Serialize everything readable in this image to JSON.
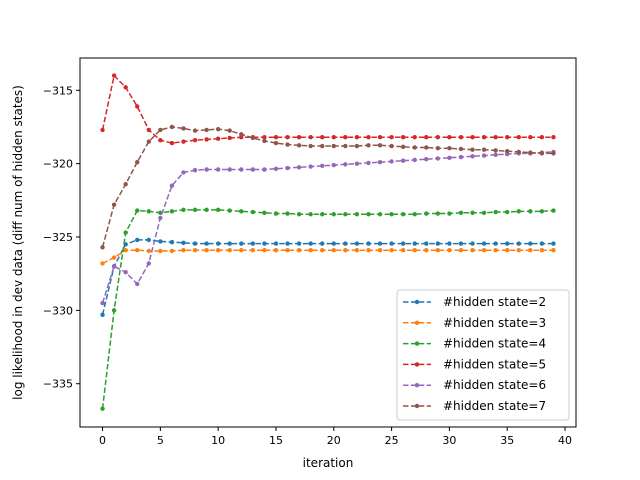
{
  "chart_data": {
    "type": "line",
    "title": "",
    "xlabel": "iteration",
    "ylabel": "log likelihood in dev data (diff num of hidden states)",
    "xlim": [
      -1.95,
      40.95
    ],
    "ylim": [
      -337.95,
      -312.8
    ],
    "xticks": [
      0,
      5,
      10,
      15,
      20,
      25,
      30,
      35,
      40
    ],
    "xtick_labels": [
      "0",
      "5",
      "10",
      "15",
      "20",
      "25",
      "30",
      "35",
      "40"
    ],
    "yticks": [
      -335,
      -330,
      -325,
      -320,
      -315
    ],
    "ytick_labels": [
      "−335",
      "−330",
      "−325",
      "−320",
      "−315"
    ],
    "grid": false,
    "legend_position": "lower right",
    "x": [
      0,
      1,
      2,
      3,
      4,
      5,
      6,
      7,
      8,
      9,
      10,
      11,
      12,
      13,
      14,
      15,
      16,
      17,
      18,
      19,
      20,
      21,
      22,
      23,
      24,
      25,
      26,
      27,
      28,
      29,
      30,
      31,
      32,
      33,
      34,
      35,
      36,
      37,
      38,
      39
    ],
    "series": [
      {
        "name": "#hidden state=2",
        "color": "#1f77b4",
        "values": [
          -330.3,
          -327.0,
          -325.5,
          -325.2,
          -325.2,
          -325.3,
          -325.35,
          -325.4,
          -325.45,
          -325.45,
          -325.45,
          -325.45,
          -325.45,
          -325.45,
          -325.45,
          -325.45,
          -325.45,
          -325.45,
          -325.45,
          -325.45,
          -325.45,
          -325.45,
          -325.45,
          -325.45,
          -325.45,
          -325.45,
          -325.45,
          -325.45,
          -325.45,
          -325.45,
          -325.45,
          -325.45,
          -325.45,
          -325.45,
          -325.45,
          -325.45,
          -325.45,
          -325.45,
          -325.45,
          -325.45
        ]
      },
      {
        "name": "#hidden state=3",
        "color": "#ff7f0e",
        "values": [
          -326.8,
          -326.4,
          -325.9,
          -325.9,
          -325.95,
          -325.95,
          -325.95,
          -325.9,
          -325.9,
          -325.9,
          -325.9,
          -325.9,
          -325.9,
          -325.9,
          -325.9,
          -325.9,
          -325.9,
          -325.9,
          -325.9,
          -325.9,
          -325.9,
          -325.9,
          -325.9,
          -325.9,
          -325.9,
          -325.9,
          -325.9,
          -325.9,
          -325.9,
          -325.9,
          -325.9,
          -325.9,
          -325.9,
          -325.9,
          -325.9,
          -325.9,
          -325.9,
          -325.9,
          -325.9,
          -325.9
        ]
      },
      {
        "name": "#hidden state=4",
        "color": "#2ca02c",
        "values": [
          -336.7,
          -330.0,
          -324.7,
          -323.2,
          -323.25,
          -323.35,
          -323.25,
          -323.15,
          -323.15,
          -323.15,
          -323.15,
          -323.2,
          -323.25,
          -323.3,
          -323.35,
          -323.4,
          -323.4,
          -323.45,
          -323.45,
          -323.45,
          -323.45,
          -323.45,
          -323.45,
          -323.45,
          -323.45,
          -323.45,
          -323.45,
          -323.45,
          -323.4,
          -323.4,
          -323.4,
          -323.35,
          -323.35,
          -323.35,
          -323.3,
          -323.3,
          -323.25,
          -323.25,
          -323.25,
          -323.2
        ]
      },
      {
        "name": "#hidden state=5",
        "color": "#d62728",
        "values": [
          -317.7,
          -314.0,
          -314.8,
          -316.1,
          -317.7,
          -318.4,
          -318.6,
          -318.5,
          -318.4,
          -318.35,
          -318.3,
          -318.25,
          -318.2,
          -318.2,
          -318.2,
          -318.2,
          -318.2,
          -318.2,
          -318.2,
          -318.2,
          -318.2,
          -318.2,
          -318.2,
          -318.2,
          -318.2,
          -318.2,
          -318.2,
          -318.2,
          -318.2,
          -318.2,
          -318.2,
          -318.2,
          -318.2,
          -318.2,
          -318.2,
          -318.2,
          -318.2,
          -318.2,
          -318.2,
          -318.2
        ]
      },
      {
        "name": "#hidden state=6",
        "color": "#9467bd",
        "values": [
          -329.5,
          -327.0,
          -327.4,
          -328.2,
          -326.8,
          -323.7,
          -321.5,
          -320.6,
          -320.45,
          -320.4,
          -320.4,
          -320.4,
          -320.4,
          -320.4,
          -320.4,
          -320.35,
          -320.3,
          -320.25,
          -320.2,
          -320.15,
          -320.1,
          -320.05,
          -320.0,
          -319.95,
          -319.9,
          -319.85,
          -319.8,
          -319.75,
          -319.7,
          -319.65,
          -319.6,
          -319.55,
          -319.5,
          -319.45,
          -319.4,
          -319.35,
          -319.3,
          -319.3,
          -319.25,
          -319.2
        ]
      },
      {
        "name": "#hidden state=7",
        "color": "#8c564b",
        "values": [
          -325.7,
          -322.8,
          -321.4,
          -319.9,
          -318.5,
          -317.7,
          -317.5,
          -317.6,
          -317.75,
          -317.7,
          -317.65,
          -317.75,
          -318.0,
          -318.25,
          -318.45,
          -318.6,
          -318.7,
          -318.75,
          -318.8,
          -318.8,
          -318.8,
          -318.8,
          -318.8,
          -318.75,
          -318.75,
          -318.8,
          -318.85,
          -318.9,
          -318.9,
          -318.95,
          -318.95,
          -319.0,
          -319.05,
          -319.05,
          -319.1,
          -319.15,
          -319.2,
          -319.25,
          -319.3,
          -319.3
        ]
      }
    ]
  }
}
